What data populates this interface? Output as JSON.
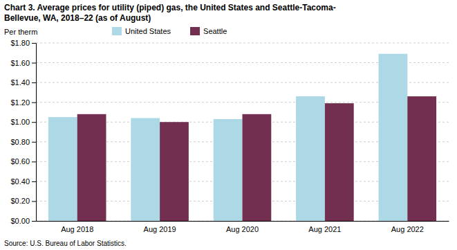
{
  "chart_data": {
    "type": "bar",
    "title": "Chart 3. Average prices for utility (piped) gas, the United States and Seattle-Tacoma-\nBellevue, WA, 2018–22 (as of August)",
    "ylabel": "Per therm",
    "source": "Source: U.S. Bureau of Labor Statistics.",
    "categories": [
      "Aug 2018",
      "Aug 2019",
      "Aug 2020",
      "Aug 2021",
      "Aug 2022"
    ],
    "series": [
      {
        "name": "United States",
        "color": "#add8e6",
        "values": [
          1.05,
          1.04,
          1.03,
          1.26,
          1.69
        ]
      },
      {
        "name": "Seattle",
        "color": "#722F4F",
        "values": [
          1.08,
          1.0,
          1.08,
          1.19,
          1.26
        ]
      }
    ],
    "ylim": [
      0,
      1.8
    ],
    "yticks": [
      {
        "value": 0.0,
        "label": "$0.00"
      },
      {
        "value": 0.2,
        "label": "$0.20"
      },
      {
        "value": 0.4,
        "label": "$0.40"
      },
      {
        "value": 0.6,
        "label": "$0.60"
      },
      {
        "value": 0.8,
        "label": "$0.80"
      },
      {
        "value": 1.0,
        "label": "$1.00"
      },
      {
        "value": 1.2,
        "label": "$1.20"
      },
      {
        "value": 1.4,
        "label": "$1.40"
      },
      {
        "value": 1.6,
        "label": "$1.60"
      },
      {
        "value": 1.8,
        "label": "$1.80"
      }
    ],
    "grid": true,
    "legend": "top"
  }
}
